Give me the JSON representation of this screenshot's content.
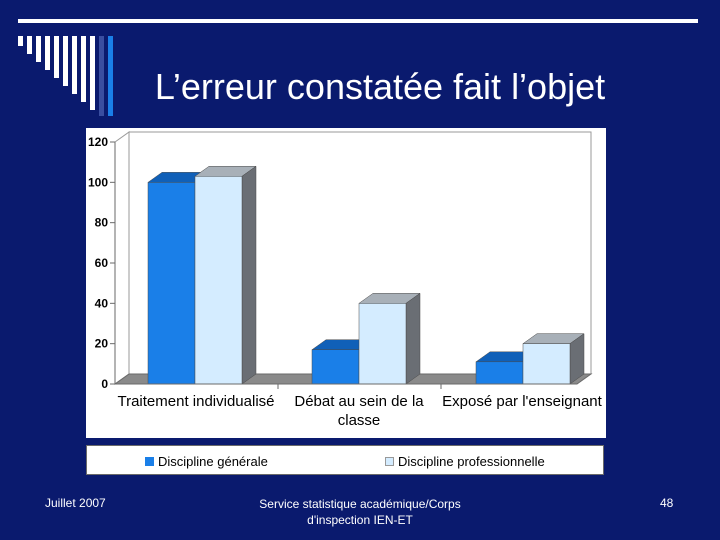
{
  "slide": {
    "title": "L’erreur constatée fait l’objet",
    "footer_date": "Juillet 2007",
    "footer_source": "Service statistique académique/Corps d'inspection IEN-ET",
    "page_number": "48"
  },
  "colors": {
    "background": "#0a1a6e",
    "series_1": "#1a7fe8",
    "series_2": "#d4ecff"
  },
  "chart_data": {
    "type": "bar",
    "categories": [
      [
        "Traitement individualisé"
      ],
      [
        "Débat au sein de la",
        "classe"
      ],
      [
        "Exposé par l'enseignant"
      ]
    ],
    "series": [
      {
        "name": "Discipline générale",
        "values": [
          100,
          17,
          11
        ]
      },
      {
        "name": "Discipline professionnelle",
        "values": [
          103,
          40,
          20
        ]
      }
    ],
    "y_ticks": [
      0,
      20,
      40,
      60,
      80,
      100,
      120
    ],
    "ylim": [
      0,
      120
    ],
    "legend_position": "bottom",
    "grid": false
  }
}
